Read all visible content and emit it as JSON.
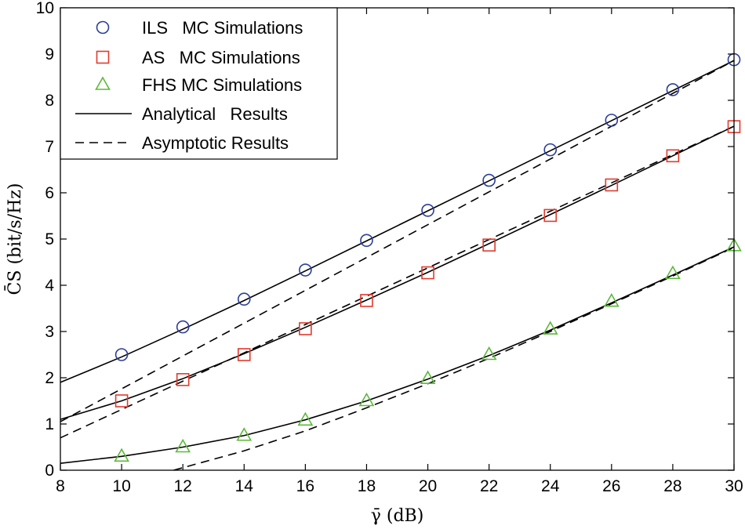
{
  "chart_data": {
    "type": "line",
    "title": "",
    "xlabel": "γ̄ (dB)",
    "ylabel": "C̄S (bit/s/Hz)",
    "xlim": [
      8,
      30
    ],
    "ylim": [
      0,
      10
    ],
    "xticks": [
      8,
      10,
      12,
      14,
      16,
      18,
      20,
      22,
      24,
      26,
      28,
      30
    ],
    "yticks": [
      0,
      1,
      2,
      3,
      4,
      5,
      6,
      7,
      8,
      9,
      10
    ],
    "grid": false,
    "legend_position": "top-left",
    "legend": [
      {
        "label": "ILS   MC Simulations",
        "marker": "circle",
        "color": "#2b3d9a"
      },
      {
        "label": "AS   MC Simulations",
        "marker": "square",
        "color": "#e03a2e"
      },
      {
        "label": "FHS MC Simulations",
        "marker": "triangle",
        "color": "#5cb93a"
      },
      {
        "label": "Analytical   Results",
        "line": "solid",
        "color": "#000000"
      },
      {
        "label": "Asymptotic Results",
        "line": "dashed",
        "color": "#000000"
      }
    ],
    "series": [
      {
        "name": "ILS MC Simulations",
        "kind": "markers",
        "marker": "circle",
        "color": "#2b3d9a",
        "x": [
          10,
          12,
          14,
          16,
          18,
          20,
          22,
          24,
          26,
          28,
          30
        ],
        "y": [
          2.5,
          3.1,
          3.7,
          4.33,
          4.97,
          5.62,
          6.27,
          6.93,
          7.57,
          8.23,
          8.88
        ]
      },
      {
        "name": "AS MC Simulations",
        "kind": "markers",
        "marker": "square",
        "color": "#e03a2e",
        "x": [
          10,
          12,
          14,
          16,
          18,
          20,
          22,
          24,
          26,
          28,
          30
        ],
        "y": [
          1.5,
          1.96,
          2.5,
          3.06,
          3.67,
          4.27,
          4.87,
          5.51,
          6.17,
          6.8,
          7.43
        ]
      },
      {
        "name": "FHS MC Simulations",
        "kind": "markers",
        "marker": "triangle",
        "color": "#5cb93a",
        "x": [
          10,
          12,
          14,
          16,
          18,
          20,
          22,
          24,
          26,
          28,
          30
        ],
        "y": [
          0.3,
          0.5,
          0.75,
          1.08,
          1.5,
          1.98,
          2.5,
          3.05,
          3.65,
          4.25,
          4.85
        ]
      },
      {
        "name": "ILS Analytical",
        "kind": "line",
        "dash": "solid",
        "color": "#000000",
        "x": [
          8,
          10,
          12,
          14,
          16,
          18,
          20,
          22,
          24,
          26,
          28,
          30
        ],
        "y": [
          1.9,
          2.45,
          3.05,
          3.67,
          4.31,
          4.96,
          5.61,
          6.26,
          6.91,
          7.56,
          8.21,
          8.86
        ]
      },
      {
        "name": "AS Analytical",
        "kind": "line",
        "dash": "solid",
        "color": "#000000",
        "x": [
          8,
          10,
          12,
          14,
          16,
          18,
          20,
          22,
          24,
          26,
          28,
          30
        ],
        "y": [
          1.1,
          1.5,
          1.98,
          2.52,
          3.09,
          3.68,
          4.28,
          4.9,
          5.53,
          6.16,
          6.8,
          7.44
        ]
      },
      {
        "name": "FHS Analytical",
        "kind": "line",
        "dash": "solid",
        "color": "#000000",
        "x": [
          8,
          10,
          12,
          14,
          16,
          18,
          20,
          22,
          24,
          26,
          28,
          30
        ],
        "y": [
          0.15,
          0.3,
          0.5,
          0.75,
          1.09,
          1.5,
          1.97,
          2.48,
          3.03,
          3.62,
          4.22,
          4.83
        ]
      },
      {
        "name": "ILS Asymptotic",
        "kind": "line",
        "dash": "dashed",
        "color": "#000000",
        "x": [
          8,
          30
        ],
        "y": [
          1.05,
          8.86
        ]
      },
      {
        "name": "AS Asymptotic",
        "kind": "line",
        "dash": "dashed",
        "color": "#000000",
        "x": [
          8,
          30
        ],
        "y": [
          0.7,
          7.44
        ]
      },
      {
        "name": "FHS Asymptotic",
        "kind": "line",
        "dash": "dashed",
        "color": "#000000",
        "x": [
          11.7,
          14,
          16,
          18,
          20,
          22,
          24,
          26,
          28,
          30
        ],
        "y": [
          0.0,
          0.42,
          0.85,
          1.35,
          1.87,
          2.42,
          3.0,
          3.6,
          4.2,
          4.82
        ]
      }
    ]
  }
}
